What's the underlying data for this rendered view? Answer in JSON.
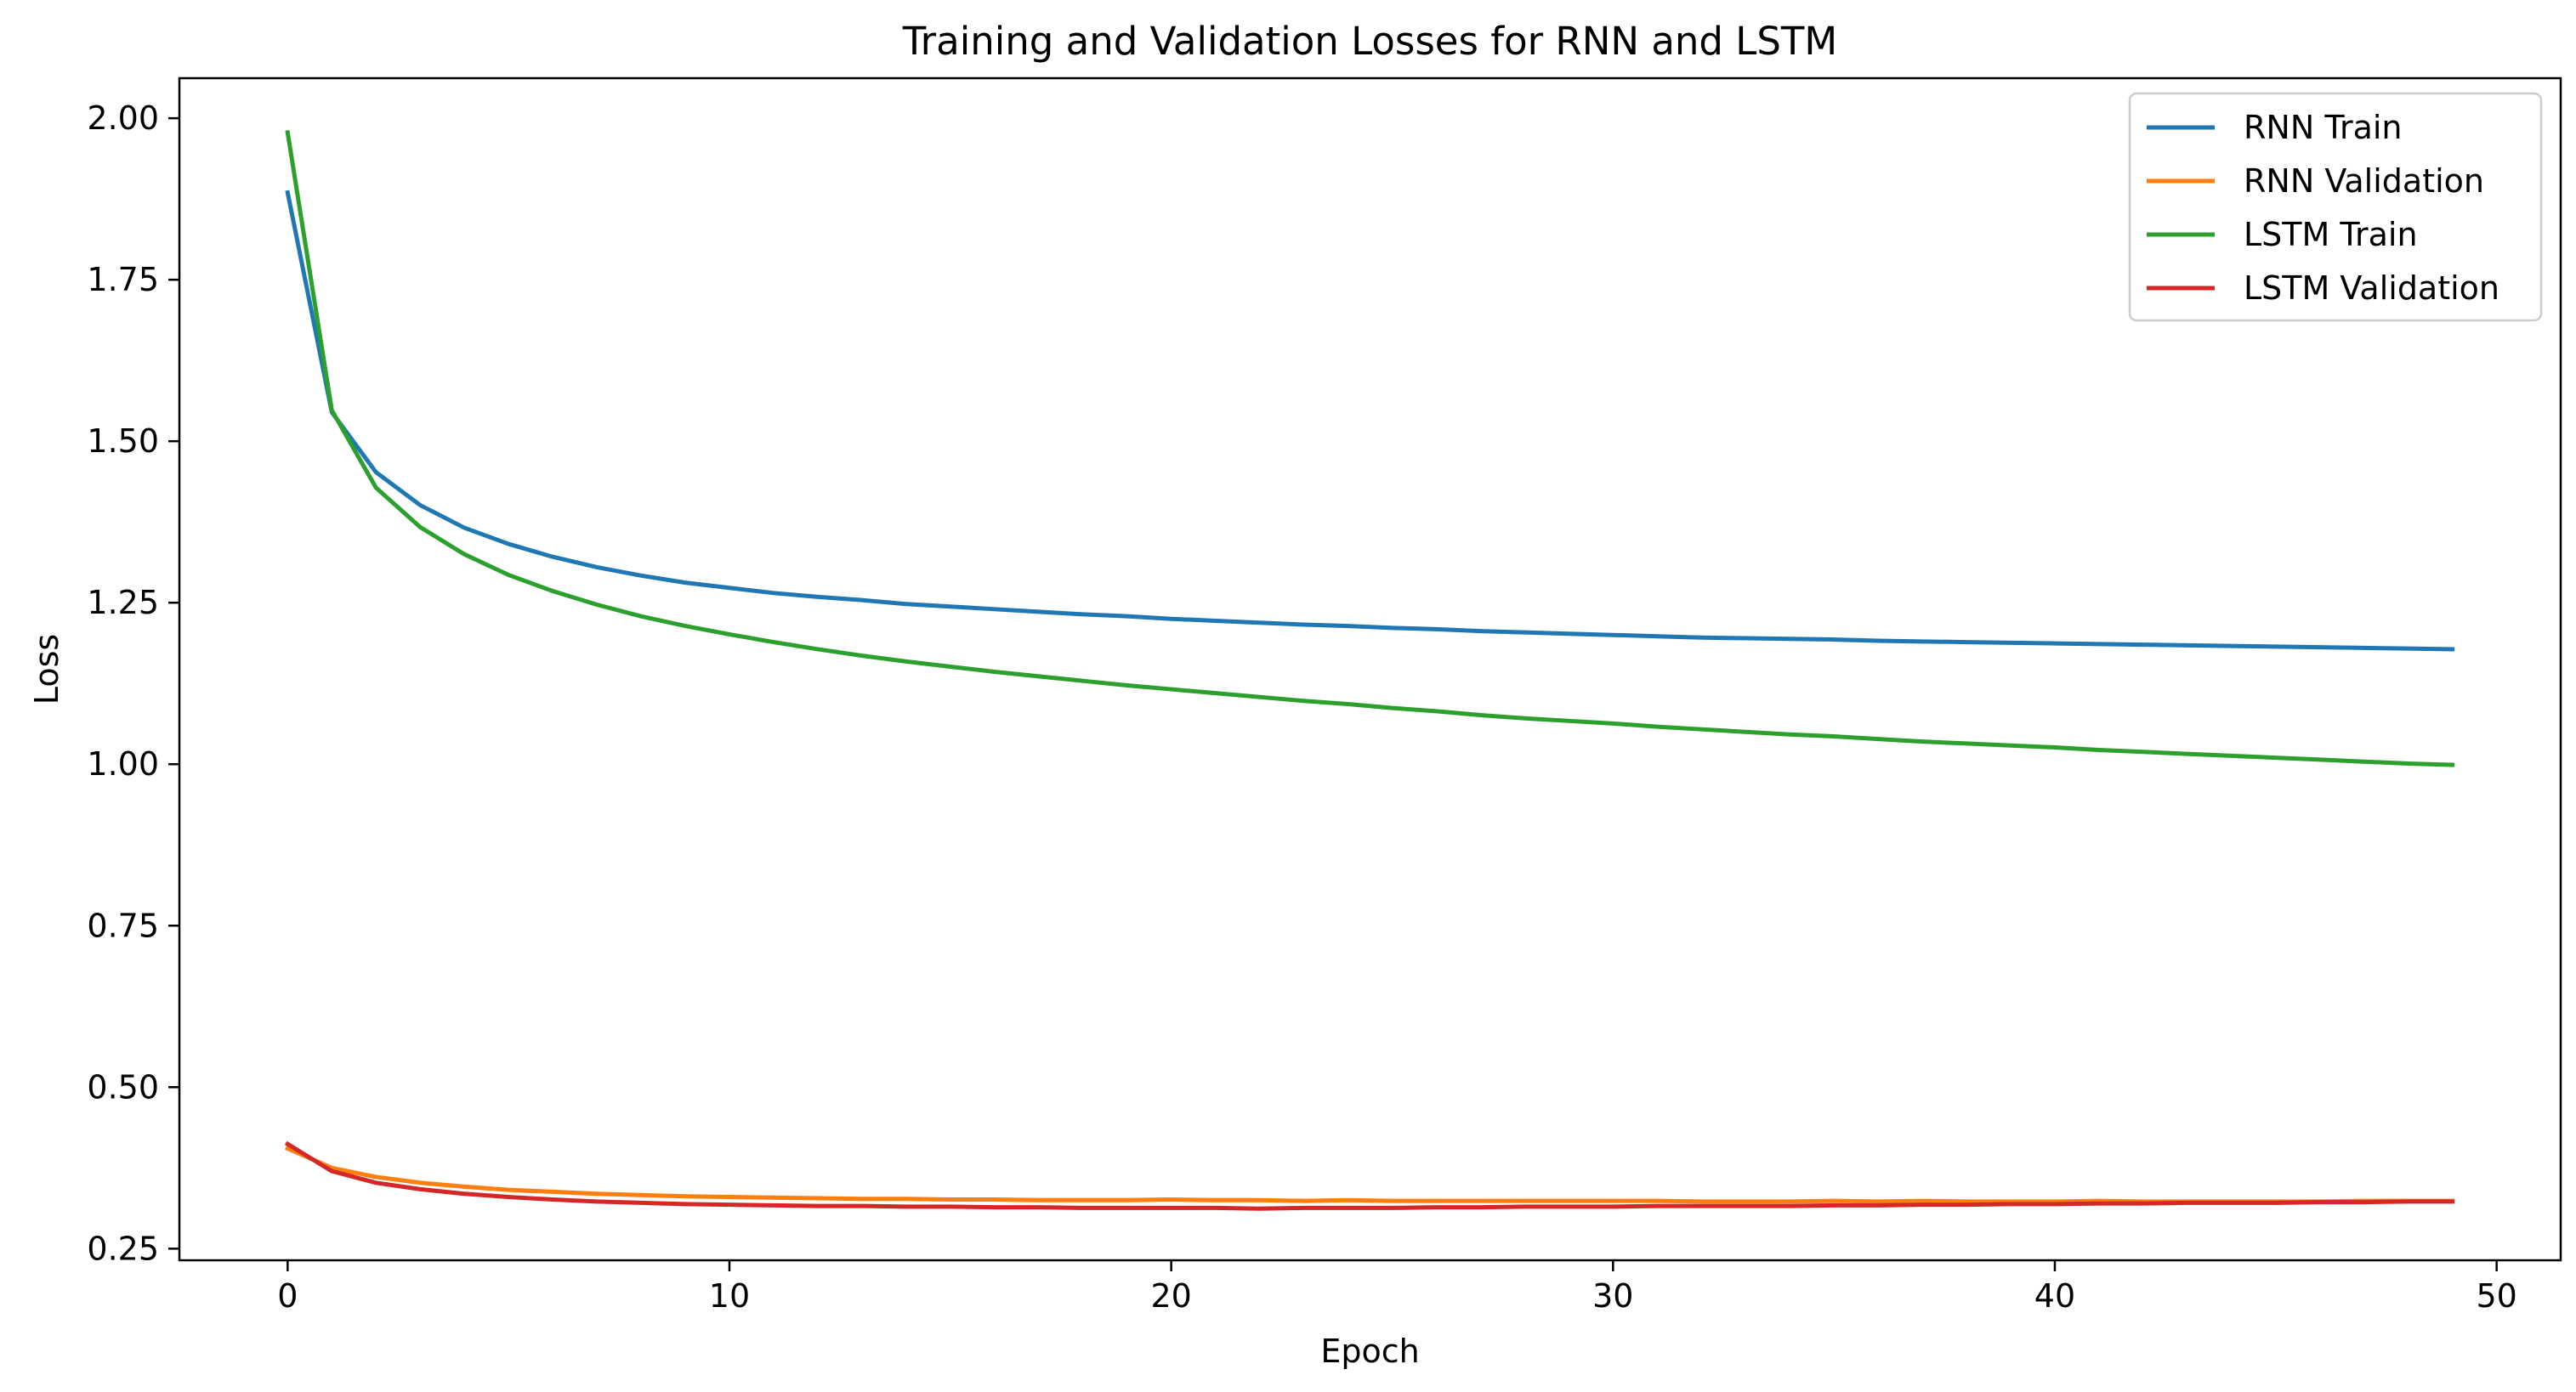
{
  "chart_data": {
    "type": "line",
    "title": "Training and Validation Losses for RNN and LSTM",
    "xlabel": "Epoch",
    "ylabel": "Loss",
    "xlim": [
      -2.45,
      51.45
    ],
    "ylim": [
      0.232,
      2.062
    ],
    "xticks": [
      0,
      10,
      20,
      30,
      40,
      50
    ],
    "xtick_labels": [
      "0",
      "10",
      "20",
      "30",
      "40",
      "50"
    ],
    "yticks": [
      0.25,
      0.5,
      0.75,
      1.0,
      1.25,
      1.5,
      1.75,
      2.0
    ],
    "ytick_labels": [
      "0.25",
      "0.50",
      "0.75",
      "1.00",
      "1.25",
      "1.50",
      "1.75",
      "2.00"
    ],
    "grid": false,
    "legend_position": "top-right",
    "x": [
      0,
      1,
      2,
      3,
      4,
      5,
      6,
      7,
      8,
      9,
      10,
      11,
      12,
      13,
      14,
      15,
      16,
      17,
      18,
      19,
      20,
      21,
      22,
      23,
      24,
      25,
      26,
      27,
      28,
      29,
      30,
      31,
      32,
      33,
      34,
      35,
      36,
      37,
      38,
      39,
      40,
      41,
      42,
      43,
      44,
      45,
      46,
      47,
      48,
      49
    ],
    "series": [
      {
        "name": "RNN Train",
        "color": "#1f77b4",
        "values": [
          1.885,
          1.545,
          1.452,
          1.401,
          1.366,
          1.341,
          1.321,
          1.305,
          1.292,
          1.281,
          1.273,
          1.265,
          1.259,
          1.254,
          1.248,
          1.244,
          1.24,
          1.236,
          1.232,
          1.229,
          1.225,
          1.222,
          1.219,
          1.216,
          1.214,
          1.211,
          1.209,
          1.206,
          1.204,
          1.202,
          1.2,
          1.198,
          1.196,
          1.195,
          1.194,
          1.193,
          1.191,
          1.19,
          1.189,
          1.188,
          1.187,
          1.186,
          1.185,
          1.184,
          1.183,
          1.182,
          1.181,
          1.18,
          1.179,
          1.178
        ]
      },
      {
        "name": "RNN Validation",
        "color": "#ff7f0e",
        "values": [
          0.405,
          0.375,
          0.361,
          0.352,
          0.346,
          0.341,
          0.338,
          0.335,
          0.333,
          0.331,
          0.33,
          0.329,
          0.328,
          0.327,
          0.327,
          0.326,
          0.326,
          0.325,
          0.325,
          0.325,
          0.326,
          0.325,
          0.325,
          0.324,
          0.325,
          0.324,
          0.324,
          0.324,
          0.324,
          0.324,
          0.324,
          0.324,
          0.323,
          0.323,
          0.323,
          0.324,
          0.323,
          0.324,
          0.323,
          0.323,
          0.323,
          0.324,
          0.323,
          0.323,
          0.323,
          0.323,
          0.323,
          0.324,
          0.324,
          0.324
        ]
      },
      {
        "name": "LSTM Train",
        "color": "#2ca02c",
        "values": [
          1.978,
          1.548,
          1.428,
          1.367,
          1.325,
          1.293,
          1.268,
          1.247,
          1.229,
          1.214,
          1.201,
          1.189,
          1.178,
          1.168,
          1.159,
          1.151,
          1.143,
          1.136,
          1.129,
          1.122,
          1.116,
          1.11,
          1.104,
          1.098,
          1.093,
          1.087,
          1.082,
          1.076,
          1.071,
          1.067,
          1.063,
          1.058,
          1.054,
          1.05,
          1.046,
          1.043,
          1.039,
          1.035,
          1.032,
          1.029,
          1.026,
          1.022,
          1.019,
          1.016,
          1.013,
          1.01,
          1.007,
          1.004,
          1.001,
          0.999
        ]
      },
      {
        "name": "LSTM Validation",
        "color": "#d62728",
        "values": [
          0.412,
          0.37,
          0.352,
          0.342,
          0.335,
          0.33,
          0.326,
          0.323,
          0.321,
          0.319,
          0.318,
          0.317,
          0.316,
          0.316,
          0.315,
          0.315,
          0.314,
          0.314,
          0.313,
          0.313,
          0.313,
          0.313,
          0.312,
          0.313,
          0.313,
          0.313,
          0.314,
          0.314,
          0.315,
          0.315,
          0.315,
          0.316,
          0.316,
          0.316,
          0.316,
          0.317,
          0.317,
          0.318,
          0.318,
          0.319,
          0.319,
          0.32,
          0.32,
          0.321,
          0.321,
          0.321,
          0.322,
          0.322,
          0.323,
          0.323
        ]
      }
    ]
  }
}
